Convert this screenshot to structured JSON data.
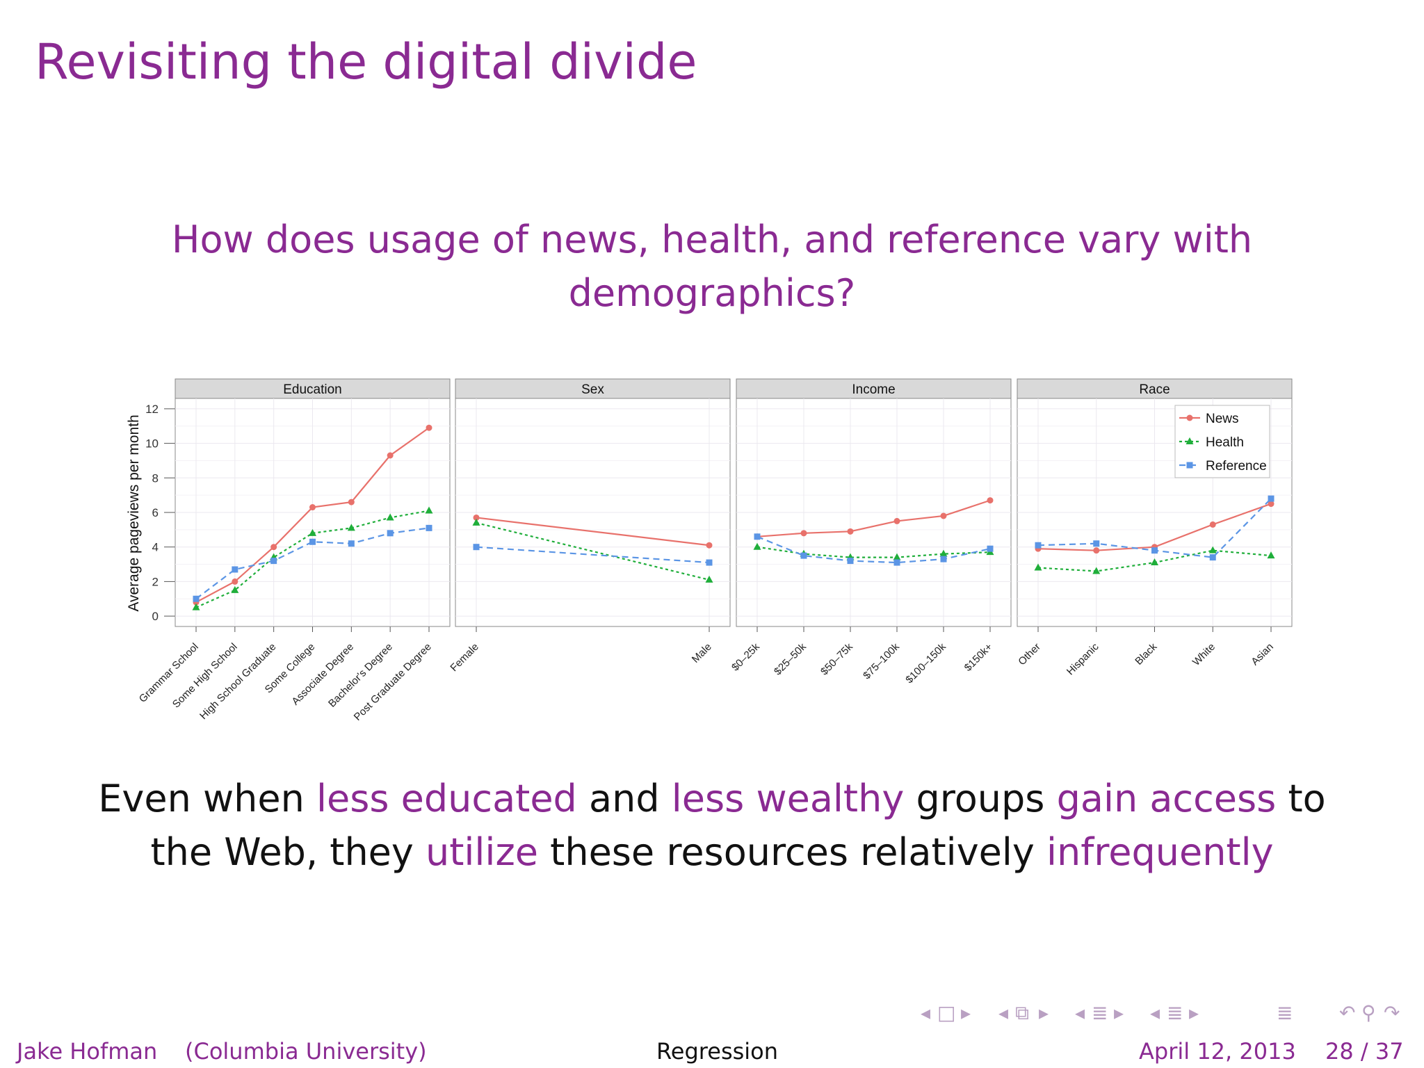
{
  "slide": {
    "title": "Revisiting the digital divide",
    "question_line1": "How does usage of news, health, and reference vary with",
    "question_line2": "demographics?",
    "conclusion": {
      "l1_a": "Even when ",
      "l1_b": "less educated",
      "l1_c": " and ",
      "l1_d": "less wealthy",
      "l1_e": " groups ",
      "l1_f": "gain access",
      "l1_g": " to",
      "l2_a": "the Web, they ",
      "l2_b": "utilize",
      "l2_c": " these resources relatively ",
      "l2_d": "infrequently"
    }
  },
  "footer": {
    "author": "Jake Hofman",
    "affiliation": "(Columbia University)",
    "topic": "Regression",
    "date": "April 12, 2013",
    "page": "28 / 37"
  },
  "nav_icons": [
    "nav-prev-frame-icon",
    "nav-frame-icon",
    "nav-next-frame-icon",
    "nav-prev-slide-icon",
    "nav-slide-icon",
    "nav-next-slide-icon",
    "nav-prev-section-icon",
    "nav-section-icon",
    "nav-next-section-icon",
    "nav-prev-subsection-icon",
    "nav-subsection-icon",
    "nav-next-subsection-icon",
    "nav-toc-icon",
    "nav-undo-icon",
    "nav-search-icon",
    "nav-redo-icon"
  ],
  "colors": {
    "accent": "#8a2a92",
    "news": "#e8716b",
    "health": "#1fae3a",
    "reference": "#5b95e5",
    "strip_bg": "#d9d9d9",
    "grid": "#ebe8ef"
  },
  "chart_data": {
    "type": "line",
    "ylabel": "Average pageviews per month",
    "ylim": [
      -0.6,
      12.6
    ],
    "yticks": [
      0,
      2,
      4,
      6,
      8,
      10,
      12
    ],
    "grid": true,
    "legend_position": "top-right",
    "series_styles": {
      "News": {
        "color": "#e8716b",
        "marker": "circle",
        "dash": "solid"
      },
      "Health": {
        "color": "#1fae3a",
        "marker": "triangle",
        "dash": "dotted"
      },
      "Reference": {
        "color": "#5b95e5",
        "marker": "square",
        "dash": "dashed"
      }
    },
    "panels": [
      {
        "title": "Education",
        "categories": [
          "Grammar School",
          "Some High School",
          "High School Graduate",
          "Some College",
          "Associate Degree",
          "Bachelor's Degree",
          "Post Graduate Degree"
        ],
        "series": [
          {
            "name": "News",
            "values": [
              0.8,
              2.0,
              4.0,
              6.3,
              6.6,
              9.3,
              10.9
            ]
          },
          {
            "name": "Health",
            "values": [
              0.5,
              1.5,
              3.4,
              4.8,
              5.1,
              5.7,
              6.1
            ]
          },
          {
            "name": "Reference",
            "values": [
              1.0,
              2.7,
              3.2,
              4.3,
              4.2,
              4.8,
              5.1
            ]
          }
        ]
      },
      {
        "title": "Sex",
        "categories": [
          "Female",
          "Male"
        ],
        "series": [
          {
            "name": "News",
            "values": [
              5.7,
              4.1
            ]
          },
          {
            "name": "Health",
            "values": [
              5.4,
              2.1
            ]
          },
          {
            "name": "Reference",
            "values": [
              4.0,
              3.1
            ]
          }
        ]
      },
      {
        "title": "Income",
        "categories": [
          "$0–25k",
          "$25–50k",
          "$50–75k",
          "$75–100k",
          "$100–150k",
          "$150k+"
        ],
        "series": [
          {
            "name": "News",
            "values": [
              4.6,
              4.8,
              4.9,
              5.5,
              5.8,
              6.7
            ]
          },
          {
            "name": "Health",
            "values": [
              4.0,
              3.6,
              3.4,
              3.4,
              3.6,
              3.7
            ]
          },
          {
            "name": "Reference",
            "values": [
              4.6,
              3.5,
              3.2,
              3.1,
              3.3,
              3.9
            ]
          }
        ]
      },
      {
        "title": "Race",
        "categories": [
          "Other",
          "Hispanic",
          "Black",
          "White",
          "Asian"
        ],
        "series": [
          {
            "name": "News",
            "values": [
              3.9,
              3.8,
              4.0,
              5.3,
              6.5
            ]
          },
          {
            "name": "Health",
            "values": [
              2.8,
              2.6,
              3.1,
              3.8,
              3.5
            ]
          },
          {
            "name": "Reference",
            "values": [
              4.1,
              4.2,
              3.8,
              3.4,
              6.8
            ]
          }
        ]
      }
    ]
  }
}
